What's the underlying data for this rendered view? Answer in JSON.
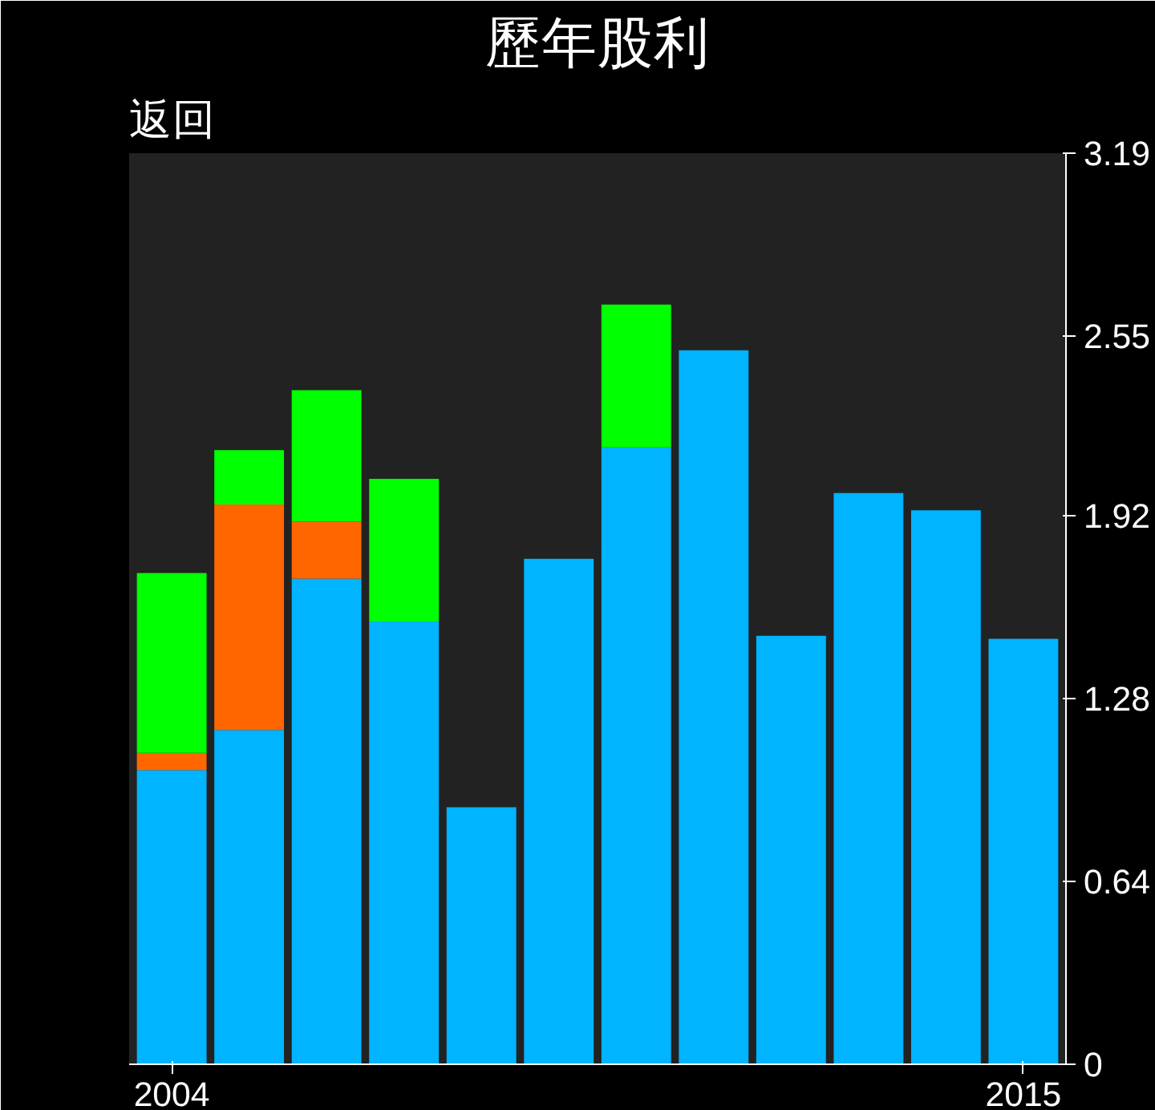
{
  "chart_data": {
    "type": "bar",
    "title": "歷年股利",
    "annotations": [
      "返回"
    ],
    "categories": [
      "2004",
      null,
      null,
      null,
      null,
      null,
      null,
      null,
      null,
      null,
      null,
      "2015"
    ],
    "stacked": true,
    "series": [
      {
        "color": "#00b4ff",
        "values": [
          1.03,
          1.17,
          1.7,
          1.55,
          0.9,
          1.77,
          2.16,
          2.5,
          1.5,
          2.0,
          1.94,
          1.49
        ]
      },
      {
        "color": "#ff6600",
        "values": [
          0.06,
          0.79,
          0.2,
          null,
          null,
          null,
          null,
          null,
          null,
          null,
          null,
          null
        ]
      },
      {
        "color": "#00ff00",
        "values": [
          0.63,
          0.19,
          0.46,
          0.5,
          null,
          null,
          0.5,
          null,
          null,
          null,
          null,
          null
        ]
      }
    ],
    "ylim": [
      0,
      3.19
    ],
    "yticks": [
      0,
      0.64,
      1.28,
      1.92,
      2.55,
      3.19
    ],
    "grid": false
  }
}
